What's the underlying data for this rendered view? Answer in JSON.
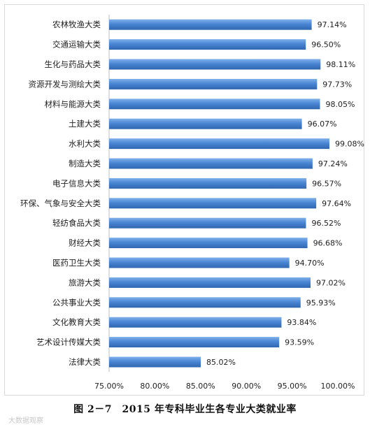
{
  "caption": "图 2－7　2015 年专科毕业生各专业大类就业率",
  "watermark": "大数据观察",
  "chart_data": {
    "type": "bar",
    "orientation": "horizontal",
    "categories": [
      "农林牧渔大类",
      "交通运输大类",
      "生化与药品大类",
      "资源开发与测绘大类",
      "材料与能源大类",
      "土建大类",
      "水利大类",
      "制造大类",
      "电子信息大类",
      "环保、气象与安全大类",
      "轻纺食品大类",
      "财经大类",
      "医药卫生大类",
      "旅游大类",
      "公共事业大类",
      "文化教育大类",
      "艺术设计传媒大类",
      "法律大类"
    ],
    "values": [
      97.14,
      96.5,
      98.11,
      97.73,
      98.05,
      96.07,
      99.08,
      97.24,
      96.57,
      97.64,
      96.52,
      96.68,
      94.7,
      97.02,
      95.93,
      93.84,
      93.59,
      85.02
    ],
    "value_labels": [
      "97.14%",
      "96.50%",
      "98.11%",
      "97.73%",
      "98.05%",
      "96.07%",
      "99.08%",
      "97.24%",
      "96.57%",
      "97.64%",
      "96.52%",
      "96.68%",
      "94.70%",
      "97.02%",
      "95.93%",
      "93.84%",
      "93.59%",
      "85.02%"
    ],
    "xlim": [
      75,
      100
    ],
    "x_ticks": [
      75,
      80,
      85,
      90,
      95,
      100
    ],
    "x_tick_labels": [
      "75.00%",
      "80.00%",
      "85.00%",
      "90.00%",
      "95.00%",
      "100.00%"
    ],
    "bar_color": "#4a86d4",
    "grid": false
  }
}
